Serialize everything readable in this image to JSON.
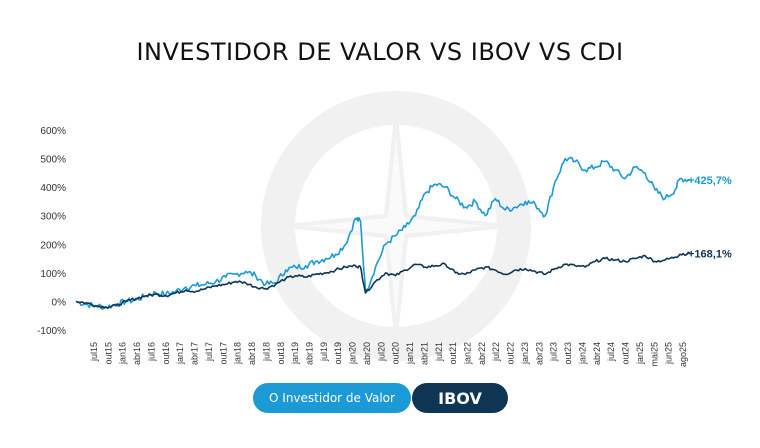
{
  "chart_data": {
    "type": "line",
    "title": "INVESTIDOR DE VALOR VS IBOV VS CDI",
    "ylim": [
      -100,
      600
    ],
    "yticks": [
      "600%",
      "500%",
      "400%",
      "300%",
      "200%",
      "100%",
      "0%",
      "-100%"
    ],
    "xticks": [
      "jul15",
      "out15",
      "jan16",
      "abr16",
      "jul16",
      "out16",
      "jan17",
      "abr17",
      "jul17",
      "out17",
      "jan18",
      "abr18",
      "jul18",
      "out18",
      "jan19",
      "abr19",
      "jul19",
      "out19",
      "jan20",
      "abr20",
      "jul20",
      "out20",
      "jan21",
      "abr21",
      "jul21",
      "out21",
      "jan22",
      "abr22",
      "jul22",
      "out22",
      "jan23",
      "abr23",
      "jul23",
      "out23",
      "jan24",
      "abr24",
      "jul24",
      "out24",
      "jan25",
      "mai25",
      "jun25",
      "ago25"
    ],
    "series": [
      {
        "name": "O Investidor de Valor",
        "color": "#1b9ad6",
        "end_label": "+425,7%",
        "x": [
          "2015-05",
          "2015-07",
          "2015-09",
          "2015-11",
          "2016-01",
          "2016-03",
          "2016-05",
          "2016-07",
          "2016-09",
          "2016-11",
          "2017-01",
          "2017-03",
          "2017-05",
          "2017-07",
          "2017-09",
          "2017-11",
          "2018-01",
          "2018-03",
          "2018-05",
          "2018-07",
          "2018-09",
          "2018-11",
          "2019-01",
          "2019-03",
          "2019-05",
          "2019-07",
          "2019-09",
          "2019-11",
          "2020-01",
          "2020-02",
          "2020-03",
          "2020-05",
          "2020-07",
          "2020-09",
          "2020-11",
          "2021-01",
          "2021-03",
          "2021-05",
          "2021-07",
          "2021-09",
          "2021-11",
          "2022-01",
          "2022-03",
          "2022-05",
          "2022-07",
          "2022-09",
          "2022-11",
          "2023-01",
          "2023-03",
          "2023-05",
          "2023-07",
          "2023-09",
          "2023-11",
          "2024-01",
          "2024-03",
          "2024-05",
          "2024-07",
          "2024-09",
          "2024-11",
          "2025-01",
          "2025-03",
          "2025-05",
          "2025-06",
          "2025-08"
        ],
        "y": [
          0,
          -10,
          -15,
          -20,
          -10,
          0,
          5,
          20,
          30,
          25,
          35,
          50,
          55,
          60,
          70,
          85,
          95,
          105,
          90,
          60,
          65,
          110,
          120,
          125,
          140,
          150,
          165,
          200,
          290,
          280,
          30,
          120,
          200,
          230,
          260,
          300,
          380,
          410,
          400,
          360,
          330,
          350,
          300,
          360,
          320,
          330,
          350,
          340,
          300,
          420,
          500,
          490,
          460,
          470,
          490,
          460,
          430,
          470,
          450,
          390,
          360,
          390,
          430,
          425.7
        ]
      },
      {
        "name": "IBOV",
        "color": "#0f3554",
        "end_label": "+168,1%",
        "x": [
          "2015-05",
          "2015-07",
          "2015-09",
          "2015-11",
          "2016-01",
          "2016-03",
          "2016-05",
          "2016-07",
          "2016-09",
          "2016-11",
          "2017-01",
          "2017-03",
          "2017-05",
          "2017-07",
          "2017-09",
          "2017-11",
          "2018-01",
          "2018-03",
          "2018-05",
          "2018-07",
          "2018-09",
          "2018-11",
          "2019-01",
          "2019-03",
          "2019-05",
          "2019-07",
          "2019-09",
          "2019-11",
          "2020-01",
          "2020-02",
          "2020-03",
          "2020-05",
          "2020-07",
          "2020-09",
          "2020-11",
          "2021-01",
          "2021-03",
          "2021-05",
          "2021-07",
          "2021-09",
          "2021-11",
          "2022-01",
          "2022-03",
          "2022-05",
          "2022-07",
          "2022-09",
          "2022-11",
          "2023-01",
          "2023-03",
          "2023-05",
          "2023-07",
          "2023-09",
          "2023-11",
          "2024-01",
          "2024-03",
          "2024-05",
          "2024-07",
          "2024-09",
          "2024-11",
          "2025-01",
          "2025-03",
          "2025-05",
          "2025-06",
          "2025-08"
        ],
        "y": [
          0,
          -5,
          -15,
          -20,
          -15,
          0,
          10,
          20,
          25,
          20,
          30,
          40,
          35,
          45,
          55,
          60,
          70,
          65,
          50,
          45,
          60,
          80,
          90,
          85,
          95,
          100,
          110,
          120,
          125,
          120,
          30,
          70,
          100,
          90,
          110,
          130,
          120,
          125,
          130,
          100,
          95,
          110,
          120,
          110,
          95,
          110,
          115,
          105,
          95,
          115,
          130,
          125,
          120,
          140,
          150,
          145,
          140,
          150,
          160,
          140,
          145,
          155,
          165,
          168.1
        ]
      }
    ]
  },
  "watermark": {
    "icon": "compass-star-icon"
  }
}
